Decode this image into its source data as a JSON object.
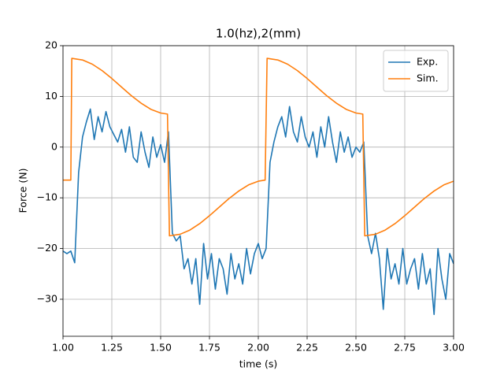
{
  "chart_data": {
    "type": "line",
    "title": "1.0(hz),2(mm)",
    "x_label": "time (s)",
    "y_label": "Force (N)",
    "xlim": [
      1.0,
      3.0
    ],
    "ylim": [
      -37.3,
      20
    ],
    "xticks": [
      {
        "value": 1.0,
        "label": "1.00"
      },
      {
        "value": 1.25,
        "label": "1.25"
      },
      {
        "value": 1.5,
        "label": "1.50"
      },
      {
        "value": 1.75,
        "label": "1.75"
      },
      {
        "value": 2.0,
        "label": "2.00"
      },
      {
        "value": 2.25,
        "label": "2.25"
      },
      {
        "value": 2.5,
        "label": "2.50"
      },
      {
        "value": 2.75,
        "label": "2.75"
      },
      {
        "value": 3.0,
        "label": "3.00"
      }
    ],
    "yticks": [
      {
        "value": -30,
        "label": "−30"
      },
      {
        "value": -20,
        "label": "−20"
      },
      {
        "value": -10,
        "label": "−10"
      },
      0,
      10,
      20
    ],
    "grid": true,
    "legend": "upper right",
    "series": [
      {
        "name": "Exp.",
        "color": "#1f77b4",
        "x": [
          1.0,
          1.02,
          1.04,
          1.06,
          1.08,
          1.1,
          1.12,
          1.14,
          1.16,
          1.18,
          1.2,
          1.22,
          1.24,
          1.26,
          1.28,
          1.3,
          1.32,
          1.34,
          1.36,
          1.38,
          1.4,
          1.42,
          1.44,
          1.46,
          1.48,
          1.5,
          1.52,
          1.54,
          1.56,
          1.58,
          1.6,
          1.62,
          1.64,
          1.66,
          1.68,
          1.7,
          1.72,
          1.74,
          1.76,
          1.78,
          1.8,
          1.82,
          1.84,
          1.86,
          1.88,
          1.9,
          1.92,
          1.94,
          1.96,
          1.98,
          2.0,
          2.02,
          2.04,
          2.06,
          2.08,
          2.1,
          2.12,
          2.14,
          2.16,
          2.18,
          2.2,
          2.22,
          2.24,
          2.26,
          2.28,
          2.3,
          2.32,
          2.34,
          2.36,
          2.38,
          2.4,
          2.42,
          2.44,
          2.46,
          2.48,
          2.5,
          2.52,
          2.54,
          2.56,
          2.58,
          2.6,
          2.62,
          2.64,
          2.66,
          2.68,
          2.7,
          2.72,
          2.74,
          2.76,
          2.78,
          2.8,
          2.82,
          2.84,
          2.86,
          2.88,
          2.9,
          2.92,
          2.94,
          2.96,
          2.98,
          3.0
        ],
        "values": [
          -20.5,
          -21,
          -20.5,
          -22.8,
          -5,
          2,
          5,
          7.5,
          1.5,
          6,
          3,
          7,
          4,
          2.5,
          1,
          3.5,
          -1,
          4,
          -2,
          -3,
          3,
          -1,
          -4,
          2,
          -2,
          0.5,
          -3,
          3,
          -17,
          -18.5,
          -17.5,
          -24,
          -22,
          -27,
          -22,
          -31,
          -19,
          -26,
          -21,
          -28,
          -22,
          -24,
          -29,
          -21,
          -26,
          -23,
          -27,
          -20,
          -25,
          -21,
          -19,
          -22,
          -20,
          -3,
          1,
          4,
          6,
          2,
          8,
          3,
          1,
          6,
          2,
          0,
          3,
          -2,
          4,
          0,
          6,
          1,
          -3,
          3,
          -1,
          2,
          -2,
          0,
          -1,
          1,
          -17.5,
          -21,
          -17,
          -22,
          -32,
          -20,
          -26,
          -23,
          -27,
          -20,
          -27,
          -24,
          -22,
          -28,
          -21,
          -27,
          -24,
          -33,
          -20,
          -26,
          -30,
          -21,
          -23
        ]
      },
      {
        "name": "Sim.",
        "color": "#ff7f0e",
        "x": [
          1.0,
          1.04,
          1.045,
          1.1,
          1.15,
          1.2,
          1.25,
          1.3,
          1.35,
          1.4,
          1.45,
          1.5,
          1.535,
          1.545,
          1.6,
          1.65,
          1.7,
          1.75,
          1.8,
          1.85,
          1.9,
          1.95,
          2.0,
          2.035,
          2.045,
          2.1,
          2.15,
          2.2,
          2.25,
          2.3,
          2.35,
          2.4,
          2.45,
          2.5,
          2.535,
          2.545,
          2.6,
          2.65,
          2.7,
          2.75,
          2.8,
          2.85,
          2.9,
          2.95,
          3.0
        ],
        "values": [
          -6.5,
          -6.5,
          17.5,
          17.18,
          16.35,
          15.09,
          13.53,
          11.83,
          10.14,
          8.66,
          7.45,
          6.72,
          6.51,
          -17.5,
          -17.18,
          -16.35,
          -15.09,
          -13.53,
          -11.83,
          -10.14,
          -8.66,
          -7.45,
          -6.72,
          -6.51,
          17.5,
          17.18,
          16.35,
          15.09,
          13.53,
          11.83,
          10.14,
          8.66,
          7.45,
          6.72,
          6.51,
          -17.5,
          -17.18,
          -16.35,
          -15.09,
          -13.53,
          -11.83,
          -10.14,
          -8.66,
          -7.45,
          -6.72
        ]
      }
    ]
  }
}
